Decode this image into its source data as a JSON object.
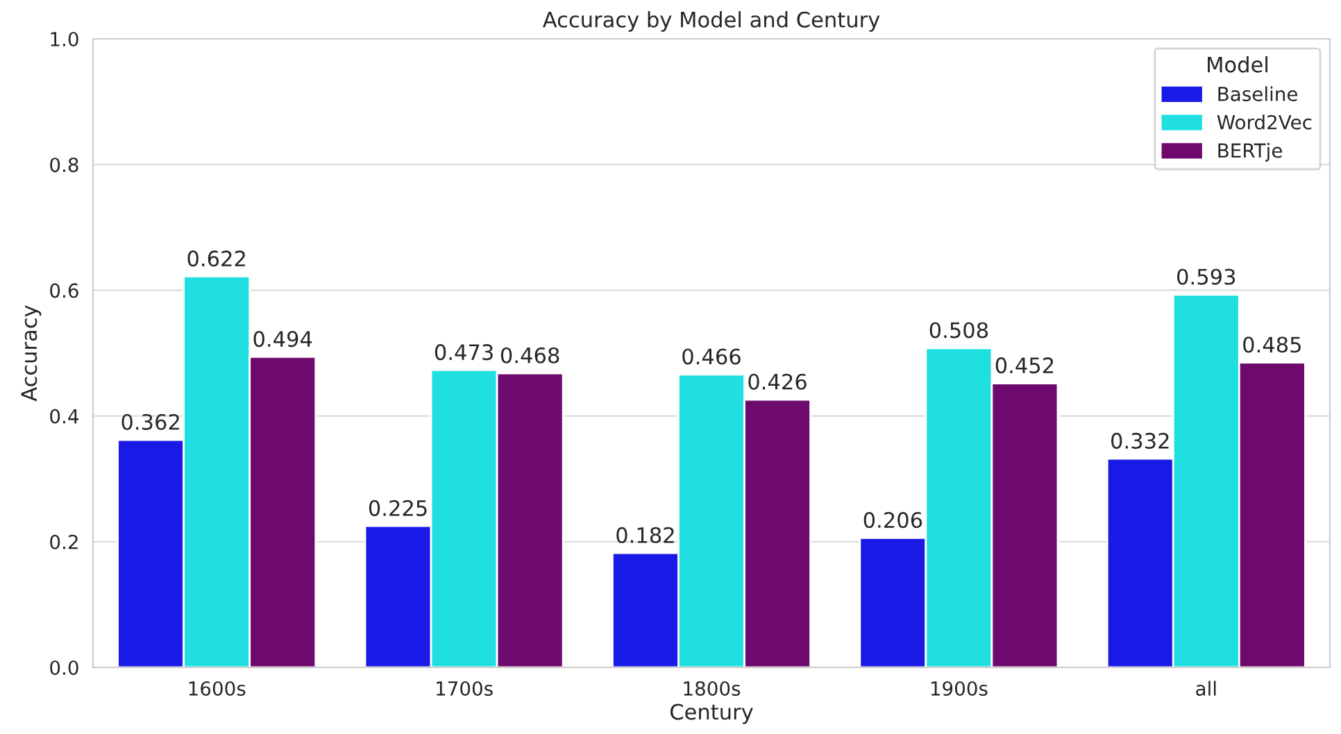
{
  "chart_data": {
    "type": "bar",
    "title": "Accuracy by Model and Century",
    "xlabel": "Century",
    "ylabel": "Accuracy",
    "legend_title": "Model",
    "categories": [
      "1600s",
      "1700s",
      "1800s",
      "1900s",
      "all"
    ],
    "series": [
      {
        "name": "Baseline",
        "color": "#1a1ae6",
        "values": [
          0.362,
          0.225,
          0.182,
          0.206,
          0.332
        ]
      },
      {
        "name": "Word2Vec",
        "color": "#1fdfe0",
        "values": [
          0.622,
          0.473,
          0.466,
          0.508,
          0.593
        ]
      },
      {
        "name": "BERTje",
        "color": "#6e0a6e",
        "values": [
          0.494,
          0.468,
          0.426,
          0.452,
          0.485
        ]
      }
    ],
    "ylim": [
      0,
      1
    ],
    "yticks": [
      {
        "value": 0,
        "label": "0.0"
      },
      {
        "value": 0.2,
        "label": "0.2"
      },
      {
        "value": 0.4,
        "label": "0.4"
      },
      {
        "value": 0.6,
        "label": "0.6"
      },
      {
        "value": 0.8,
        "label": "0.8"
      },
      {
        "value": 1,
        "label": "1.0"
      }
    ],
    "grid": "y",
    "legend": "top right",
    "data_labels": true
  }
}
